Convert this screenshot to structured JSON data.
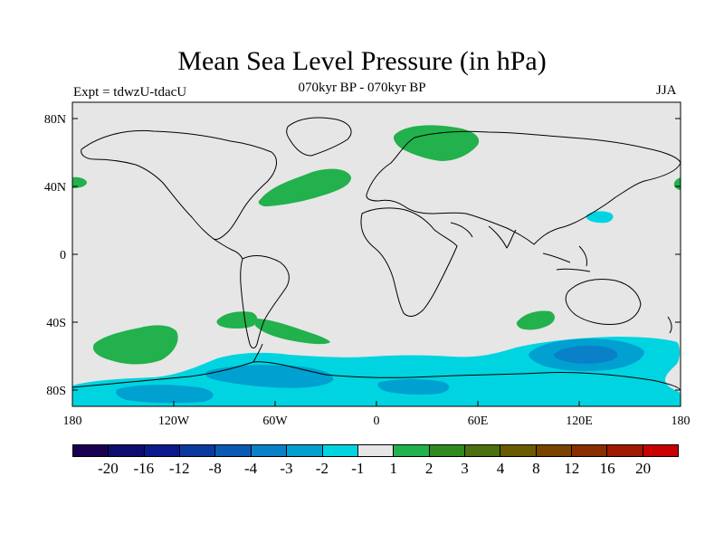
{
  "header": {
    "title": "Mean Sea Level Pressure (in hPa)",
    "subtitle": "070kyr BP - 070kyr BP",
    "expt_label": "Expt = tdwzU-tdacU",
    "season": "JJA"
  },
  "map": {
    "lat_ticks": [
      "80N",
      "40N",
      "0",
      "40S",
      "80S"
    ],
    "lon_ticks": [
      "180",
      "120W",
      "60W",
      "0",
      "60E",
      "120E",
      "180"
    ],
    "background_color": "#e6e6e6",
    "anomaly_regions": [
      {
        "region": "Arctic / northern Scandinavia",
        "level": "1 to 2",
        "color": "#22b14c"
      },
      {
        "region": "North Atlantic",
        "level": "1 to 2",
        "color": "#22b14c"
      },
      {
        "region": "Northern Pacific edge",
        "level": "1 to 2",
        "color": "#22b14c"
      },
      {
        "region": "South Pacific",
        "level": "1 to 2",
        "color": "#22b14c"
      },
      {
        "region": "Southern South America",
        "level": "1 to 2",
        "color": "#22b14c"
      },
      {
        "region": "Southern Indian Ocean",
        "level": "1 to 2",
        "color": "#22b14c"
      },
      {
        "region": "Western Pacific",
        "level": "-2 to -1",
        "color": "#00d4e0"
      },
      {
        "region": "Southern Ocean",
        "level": "-2 to -1",
        "color": "#00d4e0"
      },
      {
        "region": "Southern Ocean south of Australia",
        "level": "-4 to -2",
        "color": "#00a0d0"
      }
    ]
  },
  "colorbar": {
    "colors": [
      "#1a0050",
      "#0d0d70",
      "#0a1a8c",
      "#0a3aa0",
      "#0a5ab4",
      "#0a80c8",
      "#00a0d0",
      "#00d4e0",
      "#e6e6e6",
      "#22b14c",
      "#2e8a1e",
      "#4a7010",
      "#6a5a00",
      "#7a4400",
      "#8a2e00",
      "#a01800",
      "#c80000"
    ],
    "labels": [
      "-20",
      "-16",
      "-12",
      "-8",
      "-4",
      "-3",
      "-2",
      "-1",
      "1",
      "2",
      "3",
      "4",
      "8",
      "12",
      "16",
      "20"
    ]
  }
}
